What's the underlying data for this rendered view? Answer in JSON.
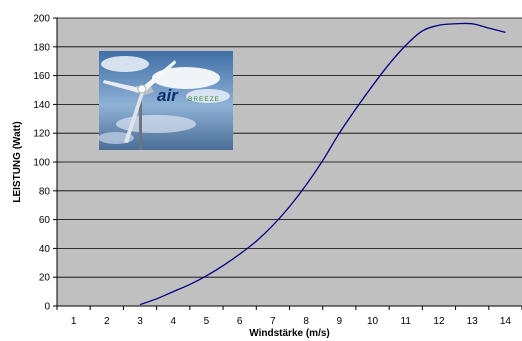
{
  "chart_data": {
    "type": "line",
    "title": "",
    "xlabel": "Windstärke (m/s)",
    "ylabel": "LEISTUNG (Watt)",
    "categories": [
      "1",
      "2",
      "3",
      "4",
      "5",
      "6",
      "7",
      "8",
      "9",
      "10",
      "11",
      "12",
      "13",
      "14"
    ],
    "xlim": [
      0.5,
      14.5
    ],
    "ylim": [
      0,
      200
    ],
    "yticks": [
      0,
      20,
      40,
      60,
      80,
      100,
      120,
      140,
      160,
      180,
      200
    ],
    "grid": "horizontal",
    "plot_background": "#c0c0c0",
    "line_color": "#000080",
    "series": [
      {
        "x": [
          3,
          3.5,
          4,
          4.5,
          5,
          5.5,
          6,
          6.5,
          7,
          7.5,
          8,
          8.5,
          9,
          9.5,
          10,
          10.5,
          11,
          11.5,
          12,
          12.5,
          13,
          13.5,
          14
        ],
        "values": [
          1,
          5,
          10,
          15,
          21,
          28,
          36,
          45,
          56,
          69,
          84,
          101,
          120,
          137,
          153,
          168,
          181,
          191,
          195,
          196,
          196,
          193,
          190
        ]
      }
    ]
  },
  "logo": {
    "text_main": "air",
    "text_sub": "BREEZE"
  }
}
